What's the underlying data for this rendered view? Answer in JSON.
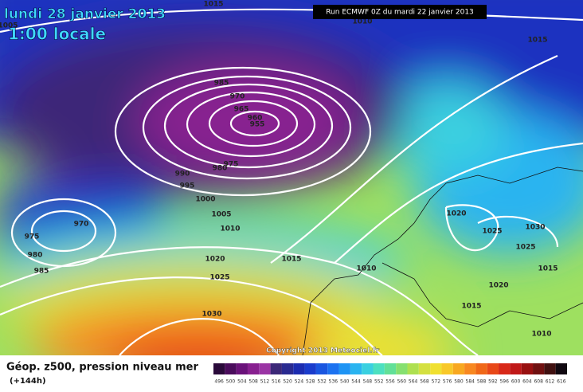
{
  "header": {
    "date": "lundi 28 janvier 2013",
    "time": "1:00 locale",
    "run": "Run ECMWF 0Z du mardi 22 janvier 2013"
  },
  "copyright": "Copyright 2013 Meteociel.fr",
  "footer": {
    "title": "Géop. z500, pression niveau mer",
    "lead": "(+144h)"
  },
  "colorbar": {
    "labels": [
      496,
      500,
      504,
      508,
      512,
      516,
      520,
      524,
      528,
      532,
      536,
      540,
      544,
      548,
      552,
      556,
      560,
      564,
      568,
      572,
      576,
      580,
      584,
      588,
      592,
      596,
      600,
      604,
      608,
      612,
      616
    ],
    "colors": [
      "#2a0a3a",
      "#4a0c5c",
      "#6a127a",
      "#882090",
      "#9a34a4",
      "#3c2878",
      "#2a2a90",
      "#1c2cb0",
      "#1a3ccc",
      "#1a56e0",
      "#1c72f0",
      "#1e94f4",
      "#2ab4f0",
      "#3ad0e0",
      "#4ce0c0",
      "#62e098",
      "#86e070",
      "#aee050",
      "#d4e040",
      "#f0e030",
      "#f8c828",
      "#f8a820",
      "#f88820",
      "#f06818",
      "#e84818",
      "#d82818",
      "#c01818",
      "#981010",
      "#701010",
      "#401010",
      "#100810"
    ]
  },
  "isobar_labels": [
    1015,
    1005,
    1010,
    1015,
    985,
    970,
    965,
    960,
    955,
    975,
    980,
    990,
    995,
    1000,
    1005,
    1010,
    970,
    975,
    980,
    985,
    1020,
    1025,
    1030,
    1015,
    1010,
    1020,
    1025,
    1030,
    1025,
    1015,
    1020,
    1015,
    1010
  ]
}
